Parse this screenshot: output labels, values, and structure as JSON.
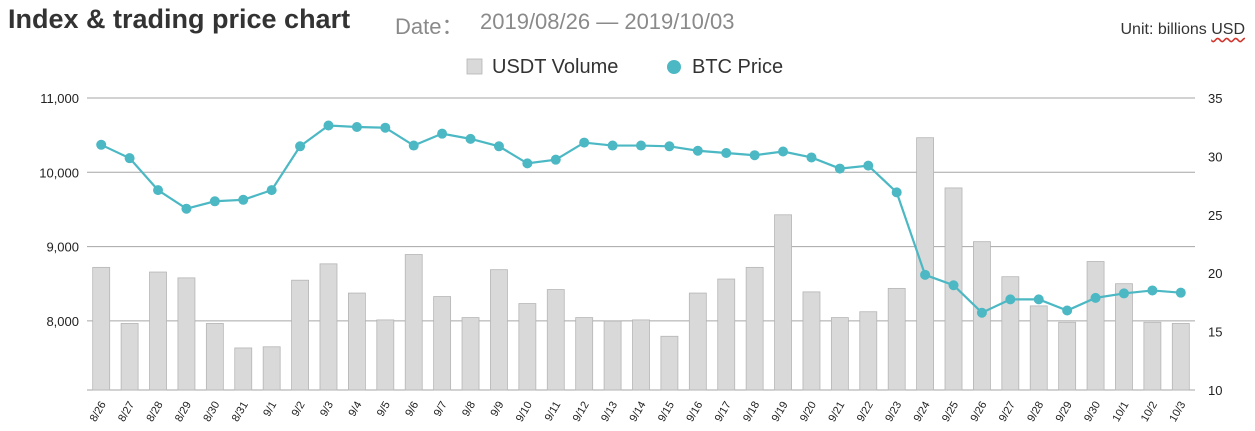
{
  "header": {
    "title": "Index & trading price chart",
    "date_label": "Date：",
    "date_range": "2019/08/26 — 2019/10/03",
    "unit_text": "Unit: billions",
    "unit_last": "USD"
  },
  "colors": {
    "bar_fill": "#d9d9d9",
    "bar_stroke": "#b5b5b5",
    "line": "#4bb8c4",
    "grid": "#a6a6a6"
  },
  "chart_data": {
    "type": "bar+line",
    "categories": [
      "8/26",
      "8/27",
      "8/28",
      "8/29",
      "8/30",
      "8/31",
      "9/1",
      "9/2",
      "9/3",
      "9/4",
      "9/5",
      "9/6",
      "9/7",
      "9/8",
      "9/9",
      "9/10",
      "9/11",
      "9/12",
      "9/13",
      "9/14",
      "9/15",
      "9/16",
      "9/17",
      "9/18",
      "9/19",
      "9/20",
      "9/21",
      "9/22",
      "9/23",
      "9/24",
      "9/25",
      "9/26",
      "9/27",
      "9/28",
      "9/29",
      "9/30",
      "10/1",
      "10/2",
      "10/3"
    ],
    "series": [
      {
        "name": "USDT Volume",
        "type": "bar",
        "axis": "right",
        "values": [
          20.5,
          15.7,
          20.1,
          19.6,
          15.7,
          13.6,
          13.7,
          19.4,
          20.8,
          18.3,
          16.0,
          21.6,
          18.0,
          16.2,
          20.3,
          17.4,
          18.6,
          16.2,
          15.9,
          16.0,
          14.6,
          18.3,
          19.5,
          20.5,
          25.0,
          18.4,
          16.2,
          16.7,
          18.7,
          31.6,
          27.3,
          22.7,
          19.7,
          17.2,
          15.8,
          21.0,
          19.1,
          15.8,
          15.7
        ]
      },
      {
        "name": "BTC Price",
        "type": "line",
        "axis": "left",
        "values": [
          10370,
          10190,
          9760,
          9510,
          9610,
          9630,
          9760,
          10350,
          10630,
          10610,
          10600,
          10360,
          10520,
          10450,
          10350,
          10120,
          10170,
          10400,
          10360,
          10360,
          10350,
          10290,
          10260,
          10230,
          10280,
          10200,
          10050,
          10090,
          9730,
          8620,
          8480,
          8110,
          8290,
          8290,
          8140,
          8310,
          8370,
          8410,
          8380
        ]
      }
    ],
    "y_left": {
      "ticks": [
        "8,000",
        "9,000",
        "10,000",
        "11,000"
      ],
      "tick_values": [
        8000,
        9000,
        10000,
        11000
      ],
      "range": [
        7070,
        11000
      ]
    },
    "y_right": {
      "ticks": [
        "10",
        "15",
        "20",
        "25",
        "30",
        "35"
      ],
      "tick_values": [
        10,
        15,
        20,
        25,
        30,
        35
      ],
      "range": [
        10,
        35
      ]
    },
    "legend": {
      "position": "top-center",
      "items": [
        "USDT Volume",
        "BTC Price"
      ]
    },
    "grid": true
  }
}
